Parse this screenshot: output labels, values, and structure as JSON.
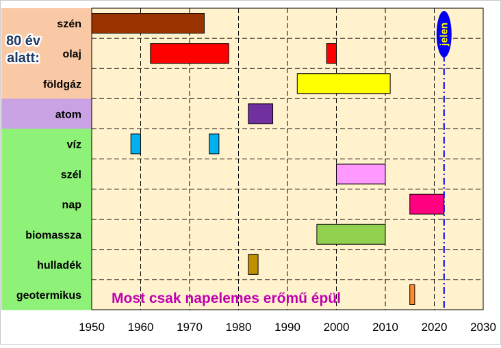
{
  "chart_data": {
    "type": "timeline-bar",
    "title": "",
    "xlabel": "",
    "ylabel": "",
    "xlim": [
      1950,
      2030
    ],
    "x_ticks": [
      "1950",
      "1960",
      "1970",
      "1980",
      "1990",
      "2000",
      "2010",
      "2020",
      "2030"
    ],
    "grid": true,
    "categories": [
      "szén",
      "olaj",
      "földgáz",
      "atom",
      "víz",
      "szél",
      "nap",
      "biomassza",
      "hulladék",
      "geotermikus"
    ],
    "category_colors": [
      "#f9c9a6",
      "#f9c9a6",
      "#f9c9a6",
      "#c9a2e4",
      "#8ef279",
      "#8ef279",
      "#8ef279",
      "#8ef279",
      "#8ef279",
      "#8ef279"
    ],
    "bars": [
      {
        "category": "szén",
        "start": 1950,
        "end": 1973,
        "color": "#993300"
      },
      {
        "category": "olaj",
        "start": 1962,
        "end": 1978,
        "color": "#ff0000"
      },
      {
        "category": "olaj",
        "start": 1998,
        "end": 2000,
        "color": "#ff0000"
      },
      {
        "category": "földgáz",
        "start": 1992,
        "end": 2011,
        "color": "#ffff00"
      },
      {
        "category": "atom",
        "start": 1982,
        "end": 1987,
        "color": "#7030a0"
      },
      {
        "category": "víz",
        "start": 1958,
        "end": 1960,
        "color": "#00b0f0"
      },
      {
        "category": "víz",
        "start": 1974,
        "end": 1976,
        "color": "#00b0f0"
      },
      {
        "category": "szél",
        "start": 2000,
        "end": 2010,
        "color": "#ff99ff"
      },
      {
        "category": "nap",
        "start": 2015,
        "end": 2022,
        "color": "#ff0080"
      },
      {
        "category": "biomassza",
        "start": 1996,
        "end": 2010,
        "color": "#92d050"
      },
      {
        "category": "hulladék",
        "start": 1982,
        "end": 1984,
        "color": "#bf8f00"
      },
      {
        "category": "geotermikus",
        "start": 2015,
        "end": 2016,
        "color": "#ff8c2a"
      }
    ],
    "current_year_marker": {
      "x": 2022,
      "label": "jelen",
      "color": "#0000ee"
    },
    "side_label": [
      "80 év",
      "alatt:"
    ],
    "annotation": "Most csak napelemes erőmű épül",
    "annotation_color": "#c000b0",
    "plot_background": "#fff2cc"
  }
}
